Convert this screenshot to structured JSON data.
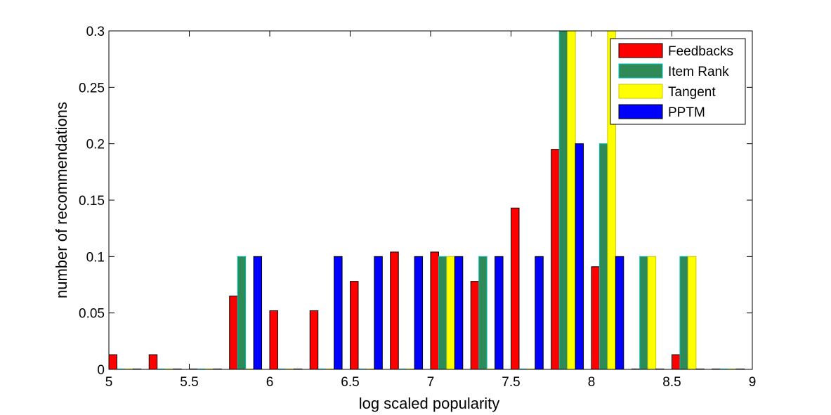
{
  "chart_data": {
    "type": "bar",
    "title": "",
    "xlabel": "log scaled popularity",
    "ylabel": "number of recommendations",
    "xlim": [
      5,
      9
    ],
    "ylim": [
      0,
      0.3
    ],
    "xticks": [
      5,
      5.5,
      6,
      6.5,
      7,
      7.5,
      8,
      8.5,
      9
    ],
    "xtick_labels": [
      "5",
      "5.5",
      "6",
      "6.5",
      "7",
      "7.5",
      "8",
      "8.5",
      "9"
    ],
    "yticks": [
      0,
      0.05,
      0.1,
      0.15,
      0.2,
      0.25,
      0.3
    ],
    "ytick_labels": [
      "0",
      "0.05",
      "0.1",
      "0.15",
      "0.2",
      "0.25",
      "0.3"
    ],
    "grid": false,
    "legend_position": "top-right",
    "bin_centers": [
      5.1,
      5.35,
      5.6,
      5.85,
      6.1,
      6.35,
      6.6,
      6.85,
      7.1,
      7.35,
      7.6,
      7.85,
      8.1,
      8.35,
      8.6,
      8.85
    ],
    "series": [
      {
        "name": "Feedbacks",
        "color": "#ff0000",
        "edge_color": "#000000",
        "values": [
          0.013,
          0.013,
          0,
          0.065,
          0.052,
          0.052,
          0.078,
          0.104,
          0.104,
          0.078,
          0.143,
          0.195,
          0.091,
          0,
          0.013,
          0
        ]
      },
      {
        "name": "Item Rank",
        "color": "#2e8b57",
        "edge_color": "#00c0c0",
        "values": [
          0,
          0,
          0,
          0.1,
          0,
          0,
          0,
          0,
          0.1,
          0.1,
          0,
          0.3,
          0.2,
          0.1,
          0.1,
          0
        ]
      },
      {
        "name": "Tangent",
        "color": "#ffff00",
        "edge_color": "#c8c800",
        "values": [
          0,
          0,
          0,
          0,
          0,
          0,
          0,
          0,
          0.1,
          0,
          0,
          0.3,
          0.3,
          0.1,
          0.1,
          0
        ]
      },
      {
        "name": "PPTM",
        "color": "#0000ff",
        "edge_color": "#000000",
        "values": [
          0,
          0,
          0,
          0.1,
          0,
          0.1,
          0.1,
          0.1,
          0.1,
          0.1,
          0.1,
          0.2,
          0.1,
          0,
          0,
          0
        ]
      }
    ]
  }
}
